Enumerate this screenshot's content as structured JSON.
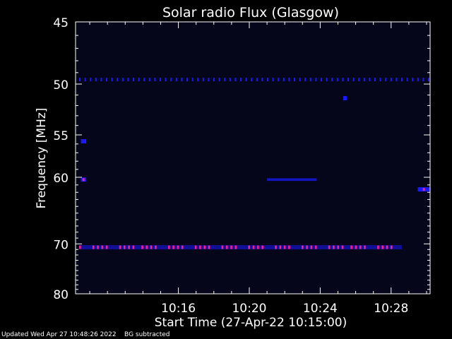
{
  "chart_data": {
    "type": "heatmap",
    "title": "Solar radio Flux (Glasgow)",
    "xlabel": "Start Time (27-Apr-22 10:15:00)",
    "ylabel": "Frequency [MHz]",
    "x_range_minutes": [
      10.2,
      30.2
    ],
    "x_ticks": [
      {
        "minute": 16,
        "label": "10:16"
      },
      {
        "minute": 20,
        "label": "10:20"
      },
      {
        "minute": 24,
        "label": "10:24"
      },
      {
        "minute": 28,
        "label": "10:28"
      }
    ],
    "y_scale": "reciprocal",
    "y_range": [
      45,
      80
    ],
    "y_ticks": [
      45,
      50,
      55,
      60,
      70,
      80
    ],
    "grid": false,
    "background": "BG subtracted",
    "colors": {
      "background": "#000000",
      "plot_bg": "#05061a",
      "weak_emission": "#1a1aff",
      "strong_emission": "#ff1a8c",
      "axes": "#ffffff"
    },
    "features": [
      {
        "name": "blue",
        "frequency": 49.6,
        "start_minute": 10.4,
        "end_minute": 30.1,
        "intensity": "moderate"
      },
      {
        "name": "magenta",
        "frequency": 70.6,
        "start_minute": 10.4,
        "end_minute": 28.6,
        "intensity": "strong"
      },
      {
        "name": "blue",
        "frequency": 60.3,
        "start_minute": 21.0,
        "end_minute": 23.8,
        "intensity": "weak"
      },
      {
        "name": "blue",
        "frequency": 55.7,
        "start_minute": 10.5,
        "end_minute": 10.8,
        "intensity": "moderate"
      },
      {
        "name": "blue",
        "frequency": 60.3,
        "start_minute": 10.5,
        "end_minute": 10.8,
        "intensity": "moderate"
      },
      {
        "name": "blue",
        "frequency": 51.3,
        "start_minute": 25.3,
        "end_minute": 25.5,
        "intensity": "weak"
      },
      {
        "name": "blue",
        "frequency": 61.6,
        "start_minute": 29.5,
        "end_minute": 30.2,
        "intensity": "weak"
      }
    ]
  },
  "footer": {
    "updated": "Updated Wed Apr 27 10:48:26 2022",
    "note": "BG subtracted"
  }
}
